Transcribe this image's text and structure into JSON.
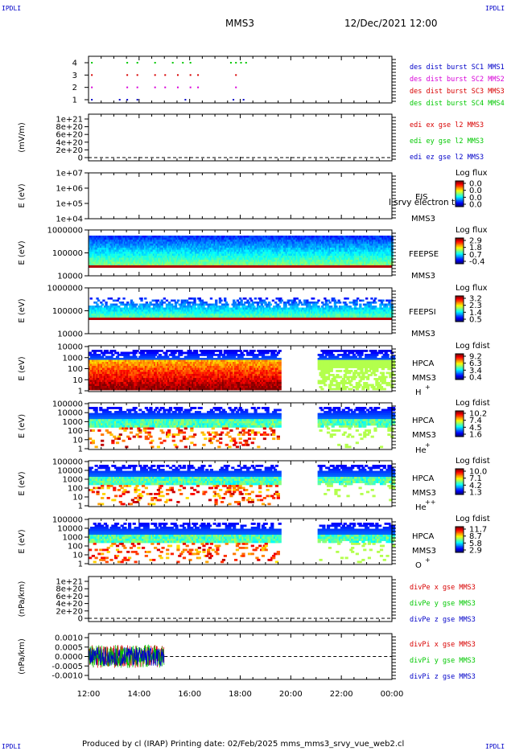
{
  "corner_label": "IPDLI",
  "header": {
    "spacecraft": "MMS3",
    "date_time": "12/Dec/2021 12:00"
  },
  "footer": "Produced by cl (IRAP)   Printing date: 02/Feb/2025   mms_mms3_srvy_vue_web2.cl",
  "colors": {
    "frame": "#000000",
    "mms1": "#0000c8",
    "mms2": "#d800d8",
    "mms3": "#d80000",
    "mms4": "#00c800",
    "x": "#d80000",
    "y": "#00c800",
    "z": "#0000c8"
  },
  "chart_data": [
    {
      "id": "burst",
      "type": "scatter",
      "yticks": [
        "1",
        "2",
        "3",
        "4"
      ],
      "legend": [
        {
          "label": "des dist burst SC1 MMS1",
          "color": "#0000c8"
        },
        {
          "label": "des dist burst SC2 MMS2",
          "color": "#d800d8"
        },
        {
          "label": "des dist burst SC3 MMS3",
          "color": "#d80000"
        },
        {
          "label": "des dist burst SC4 MMS4",
          "color": "#00c800"
        }
      ],
      "series": [
        {
          "y": 1,
          "color": "#0000c8",
          "x_hours": [
            12.1,
            13.2,
            13.5,
            13.9,
            15.8,
            17.7,
            18.1
          ]
        },
        {
          "y": 2,
          "color": "#d800d8",
          "x_hours": [
            12.1,
            13.5,
            13.9,
            14.6,
            15.0,
            15.5,
            16.0,
            16.3,
            17.8
          ]
        },
        {
          "y": 3,
          "color": "#d80000",
          "x_hours": [
            12.1,
            13.5,
            13.9,
            14.6,
            15.0,
            15.5,
            16.0,
            16.3,
            17.8
          ]
        },
        {
          "y": 4,
          "color": "#00c800",
          "x_hours": [
            12.1,
            13.5,
            13.9,
            14.6,
            15.3,
            15.7,
            16.0,
            17.6,
            17.8,
            18.0,
            18.2
          ]
        }
      ]
    },
    {
      "id": "edi",
      "type": "line",
      "ylabel": "(mV/m)",
      "yticks": [
        "1e+21",
        "8e+20",
        "6e+20",
        "4e+20",
        "2e+20",
        "0"
      ],
      "legend": [
        {
          "label": "edi ex gse l2 MMS3",
          "color": "#d80000"
        },
        {
          "label": "edi ey gse l2 MMS3",
          "color": "#00c800"
        },
        {
          "label": "edi ez gse l2 MMS3",
          "color": "#0000c8"
        }
      ]
    },
    {
      "id": "eis",
      "type": "heatmap",
      "ylabel": "E (eV)",
      "yticks": [
        "1e+07",
        "1e+06",
        "1e+05",
        "1e+04"
      ],
      "instrument": "EIS",
      "spacecraft": "MMS3",
      "cbar_title": "Log flux",
      "cbar_ticks": [
        "0.0",
        "0.0",
        "0.0",
        "0.0"
      ],
      "overlay_text": "l srvy electron to"
    },
    {
      "id": "feeps_e",
      "type": "heatmap",
      "ylabel": "E (eV)",
      "yticks": [
        "1000000",
        "100000",
        "10000"
      ],
      "instrument": "FEEPSE",
      "spacecraft": "MMS3",
      "cbar_title": "Log flux",
      "cbar_ticks": [
        "2.9",
        "1.8",
        "0.7",
        "-0.4"
      ]
    },
    {
      "id": "feeps_i",
      "type": "heatmap",
      "ylabel": "E (eV)",
      "yticks": [
        "1000000",
        "100000",
        "10000"
      ],
      "instrument": "FEEPSI",
      "spacecraft": "MMS3",
      "cbar_title": "Log flux",
      "cbar_ticks": [
        "3.2",
        "2.3",
        "1.4",
        "0.5"
      ]
    },
    {
      "id": "hpca_h",
      "type": "heatmap",
      "ylabel": "E (eV)",
      "yticks": [
        "10000",
        "1000",
        "100",
        "10",
        "1"
      ],
      "instrument": "HPCA",
      "spacecraft": "MMS3",
      "species": "H",
      "charge": "+",
      "cbar_title": "Log fdist",
      "cbar_ticks": [
        "9.2",
        "6.3",
        "3.4",
        "0.4"
      ],
      "data_gap_hours": [
        19.5,
        21.0
      ]
    },
    {
      "id": "hpca_he",
      "type": "heatmap",
      "ylabel": "E (eV)",
      "yticks": [
        "100000",
        "10000",
        "1000",
        "100",
        "10",
        "1"
      ],
      "instrument": "HPCA",
      "spacecraft": "MMS3",
      "species": "He",
      "charge": "+",
      "cbar_title": "Log fdist",
      "cbar_ticks": [
        "10.2",
        "7.4",
        "4.5",
        "1.6"
      ],
      "data_gap_hours": [
        19.5,
        21.0
      ]
    },
    {
      "id": "hpca_he2",
      "type": "heatmap",
      "ylabel": "E (eV)",
      "yticks": [
        "100000",
        "10000",
        "1000",
        "100",
        "10",
        "1"
      ],
      "instrument": "HPCA",
      "spacecraft": "MMS3",
      "species": "He",
      "charge": "++",
      "cbar_title": "Log fdist",
      "cbar_ticks": [
        "10.0",
        "7.1",
        "4.2",
        "1.3"
      ],
      "data_gap_hours": [
        19.5,
        21.0
      ]
    },
    {
      "id": "hpca_o",
      "type": "heatmap",
      "ylabel": "E (eV)",
      "yticks": [
        "100000",
        "10000",
        "1000",
        "100",
        "10",
        "1"
      ],
      "instrument": "HPCA",
      "spacecraft": "MMS3",
      "species": "O",
      "charge": "+",
      "cbar_title": "Log fdist",
      "cbar_ticks": [
        "11.7",
        "8.7",
        "5.8",
        "2.9"
      ],
      "data_gap_hours": [
        19.5,
        21.0
      ]
    },
    {
      "id": "divpe",
      "type": "line",
      "ylabel": "(nPa/km)",
      "yticks": [
        "1e+21",
        "8e+20",
        "6e+20",
        "4e+20",
        "2e+20",
        "0"
      ],
      "legend": [
        {
          "label": "divPe x gse MMS3",
          "color": "#d80000"
        },
        {
          "label": "divPe y gse MMS3",
          "color": "#00c800"
        },
        {
          "label": "divPe z gse MMS3",
          "color": "#0000c8"
        }
      ]
    },
    {
      "id": "divpi",
      "type": "line",
      "ylabel": "(nPa/km)",
      "yticks": [
        "0.0010",
        "0.0005",
        "0.0000",
        "-0.0005",
        "-0.0010"
      ],
      "ylim": [
        -0.0012,
        0.0012
      ],
      "data_end_hours": 15.0,
      "legend": [
        {
          "label": "divPi x gse MMS3",
          "color": "#d80000"
        },
        {
          "label": "divPi y gse MMS3",
          "color": "#00c800"
        },
        {
          "label": "divPi z gse MMS3",
          "color": "#0000c8"
        }
      ]
    }
  ],
  "time_axis": {
    "ticks": [
      "12:00",
      "14:00",
      "16:00",
      "18:00",
      "20:00",
      "22:00",
      "00:00"
    ],
    "range_hours": [
      12,
      24
    ]
  }
}
